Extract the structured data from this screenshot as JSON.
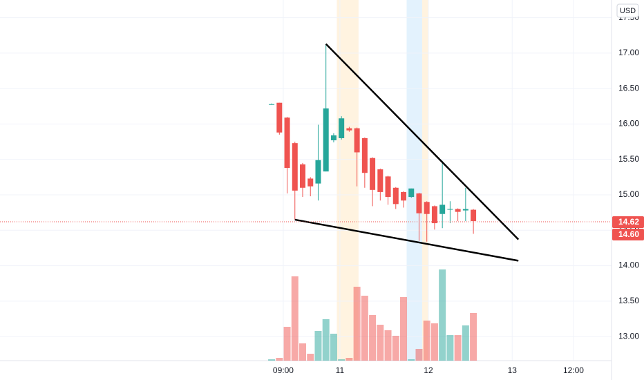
{
  "chart_data": {
    "type": "candlestick",
    "currency": "USD",
    "x": [
      0,
      1,
      2,
      3,
      4,
      5,
      6,
      7,
      8,
      9,
      10,
      11,
      12,
      13,
      14,
      15,
      16,
      17,
      18,
      19,
      20,
      21,
      22,
      23,
      24,
      25,
      26
    ],
    "open": [
      16.28,
      16.3,
      16.09,
      15.73,
      15.43,
      15.23,
      15.16,
      15.33,
      15.77,
      15.8,
      15.94,
      15.94,
      15.8,
      15.52,
      15.36,
      15.26,
      15.1,
      15.04,
      14.97,
      15.02,
      14.9,
      14.84,
      14.73,
      14.79,
      14.8,
      14.78,
      14.79
    ],
    "high": [
      16.29,
      16.3,
      16.1,
      15.75,
      15.45,
      15.25,
      15.99,
      17.13,
      15.87,
      16.11,
      15.96,
      15.95,
      15.81,
      15.53,
      15.37,
      15.27,
      15.11,
      15.05,
      15.09,
      15.03,
      14.91,
      14.85,
      15.48,
      14.91,
      14.81,
      15.1,
      14.8
    ],
    "low": [
      16.28,
      15.85,
      15.02,
      14.65,
      14.97,
      14.98,
      14.92,
      15.33,
      15.74,
      15.78,
      15.89,
      15.12,
      15.1,
      14.84,
      14.92,
      14.86,
      14.8,
      14.82,
      14.96,
      14.35,
      14.34,
      14.51,
      14.53,
      14.6,
      14.63,
      14.63,
      14.45
    ],
    "close": [
      16.28,
      15.88,
      15.38,
      15.06,
      15.1,
      15.12,
      15.49,
      16.22,
      15.84,
      16.08,
      15.91,
      15.6,
      15.31,
      15.07,
      15.04,
      14.97,
      14.87,
      14.92,
      15.09,
      14.74,
      14.73,
      14.6,
      14.86,
      14.8,
      14.76,
      14.8,
      14.63
    ],
    "volume": [
      2,
      4,
      49,
      122,
      25,
      10,
      43,
      60,
      39,
      2,
      4,
      107,
      94,
      66,
      52,
      44,
      36,
      92,
      2,
      17,
      58,
      54,
      132,
      37,
      37,
      51,
      69
    ],
    "up_color": "#26a69a",
    "down_color": "#ef5350",
    "xlim": [
      -35.0,
      43.8
    ],
    "xticks": [
      {
        "value": 1.5,
        "label": "09:00"
      },
      {
        "value": 8.8,
        "label": "11"
      },
      {
        "value": 20.2,
        "label": "12"
      },
      {
        "value": 31.0,
        "label": "13"
      },
      {
        "value": 38.9,
        "label": "12:00"
      }
    ],
    "ylim": [
      12.66,
      17.75
    ],
    "yticks": [
      {
        "value": 13,
        "label": "13.00"
      },
      {
        "value": 13.5,
        "label": "13.50"
      },
      {
        "value": 14,
        "label": "14.00"
      },
      {
        "value": 14.5,
        "label": "14.50"
      },
      {
        "value": 15,
        "label": "15.00"
      },
      {
        "value": 15.5,
        "label": "15.50"
      },
      {
        "value": 16,
        "label": "16.00"
      },
      {
        "value": 16.5,
        "label": "16.50"
      },
      {
        "value": 17,
        "label": "17.00"
      },
      {
        "value": 17.5,
        "label": "17.50"
      }
    ],
    "grid": true,
    "price_labels": [
      {
        "value": 14.62,
        "label": "14.62"
      },
      {
        "value": 14.6,
        "label": "14.60"
      }
    ],
    "trend_lines": [
      {
        "x": [
          7.0,
          31.8
        ],
        "y": [
          17.13,
          14.37
        ]
      },
      {
        "x": [
          3.0,
          31.8
        ],
        "y": [
          14.65,
          14.07
        ]
      }
    ],
    "highlights": [
      {
        "x": [
          8.4,
          11.2
        ],
        "color": "#fff3e0"
      },
      {
        "x": [
          17.4,
          19.4
        ],
        "color": "#e3f2fd"
      },
      {
        "x": [
          19.4,
          20.2
        ],
        "color": "#fff3e0"
      }
    ]
  }
}
